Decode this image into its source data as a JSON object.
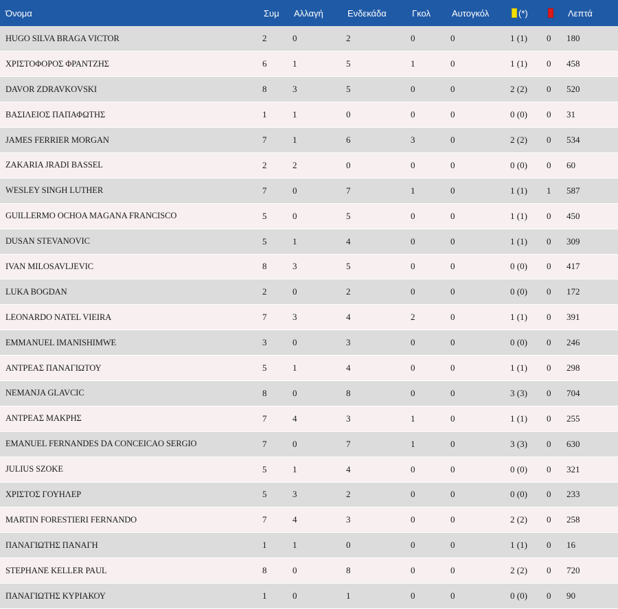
{
  "table": {
    "headers": {
      "name": "Όνομα",
      "apps": "Συμ",
      "sub": "Αλλαγή",
      "starts": "Ενδεκάδα",
      "goals": "Γκολ",
      "own_goals": "Αυτογκόλ",
      "yellow_suffix": "(*)",
      "minutes": "Λεπτά"
    },
    "colors": {
      "header_bg": "#1f5aa6",
      "yellow_card": "#f4e000",
      "red_card": "#e11b1b",
      "row_odd": "#dcdcdc",
      "row_even": "#f7eff0"
    },
    "rows": [
      {
        "name": "HUGO SILVA BRAGA VICTOR",
        "apps": "2",
        "sub": "0",
        "starts": "2",
        "goals": "0",
        "own": "0",
        "yellow": "1 (1)",
        "red": "0",
        "min": "180"
      },
      {
        "name": "ΧΡΙΣΤΟΦΟΡΟΣ ΦΡΑΝΤΖΗΣ",
        "apps": "6",
        "sub": "1",
        "starts": "5",
        "goals": "1",
        "own": "0",
        "yellow": "1 (1)",
        "red": "0",
        "min": "458"
      },
      {
        "name": "DAVOR ZDRAVKOVSKI",
        "apps": "8",
        "sub": "3",
        "starts": "5",
        "goals": "0",
        "own": "0",
        "yellow": "2 (2)",
        "red": "0",
        "min": "520"
      },
      {
        "name": "ΒΑΣΙΛΕΙΟΣ ΠΑΠΑΦΩΤΗΣ",
        "apps": "1",
        "sub": "1",
        "starts": "0",
        "goals": "0",
        "own": "0",
        "yellow": "0 (0)",
        "red": "0",
        "min": "31"
      },
      {
        "name": "JAMES FERRIER MORGAN",
        "apps": "7",
        "sub": "1",
        "starts": "6",
        "goals": "3",
        "own": "0",
        "yellow": "2 (2)",
        "red": "0",
        "min": "534"
      },
      {
        "name": "ZAKARIA JRADI BASSEL",
        "apps": "2",
        "sub": "2",
        "starts": "0",
        "goals": "0",
        "own": "0",
        "yellow": "0 (0)",
        "red": "0",
        "min": "60"
      },
      {
        "name": "WESLEY SINGH LUTHER",
        "apps": "7",
        "sub": "0",
        "starts": "7",
        "goals": "1",
        "own": "0",
        "yellow": "1 (1)",
        "red": "1",
        "min": "587"
      },
      {
        "name": "GUILLERMO OCHOA MAGANA FRANCISCO",
        "apps": "5",
        "sub": "0",
        "starts": "5",
        "goals": "0",
        "own": "0",
        "yellow": "1 (1)",
        "red": "0",
        "min": "450"
      },
      {
        "name": "DUSAN STEVANOVIC",
        "apps": "5",
        "sub": "1",
        "starts": "4",
        "goals": "0",
        "own": "0",
        "yellow": "1 (1)",
        "red": "0",
        "min": "309"
      },
      {
        "name": "IVAN MILOSAVLJEVIC",
        "apps": "8",
        "sub": "3",
        "starts": "5",
        "goals": "0",
        "own": "0",
        "yellow": "0 (0)",
        "red": "0",
        "min": "417"
      },
      {
        "name": "LUKA BOGDAN",
        "apps": "2",
        "sub": "0",
        "starts": "2",
        "goals": "0",
        "own": "0",
        "yellow": "0 (0)",
        "red": "0",
        "min": "172"
      },
      {
        "name": "LEONARDO NATEL VIEIRA",
        "apps": "7",
        "sub": "3",
        "starts": "4",
        "goals": "2",
        "own": "0",
        "yellow": "1 (1)",
        "red": "0",
        "min": "391"
      },
      {
        "name": "EMMANUEL IMANISHIMWE",
        "apps": "3",
        "sub": "0",
        "starts": "3",
        "goals": "0",
        "own": "0",
        "yellow": "0 (0)",
        "red": "0",
        "min": "246"
      },
      {
        "name": "ΑΝΤΡΕΑΣ ΠΑΝΑΓΙΩΤΟΥ",
        "apps": "5",
        "sub": "1",
        "starts": "4",
        "goals": "0",
        "own": "0",
        "yellow": "1 (1)",
        "red": "0",
        "min": "298"
      },
      {
        "name": "NEMANJA GLAVCIC",
        "apps": "8",
        "sub": "0",
        "starts": "8",
        "goals": "0",
        "own": "0",
        "yellow": "3 (3)",
        "red": "0",
        "min": "704"
      },
      {
        "name": "ΑΝΤΡΕΑΣ ΜΑΚΡΗΣ",
        "apps": "7",
        "sub": "4",
        "starts": "3",
        "goals": "1",
        "own": "0",
        "yellow": "1 (1)",
        "red": "0",
        "min": "255"
      },
      {
        "name": "EMANUEL FERNANDES DA CONCEICAO SERGIO",
        "apps": "7",
        "sub": "0",
        "starts": "7",
        "goals": "1",
        "own": "0",
        "yellow": "3 (3)",
        "red": "0",
        "min": "630"
      },
      {
        "name": "JULIUS SZOKE",
        "apps": "5",
        "sub": "1",
        "starts": "4",
        "goals": "0",
        "own": "0",
        "yellow": "0 (0)",
        "red": "0",
        "min": "321"
      },
      {
        "name": "ΧΡΙΣΤΟΣ ΓΟΥΗΛΕΡ",
        "apps": "5",
        "sub": "3",
        "starts": "2",
        "goals": "0",
        "own": "0",
        "yellow": "0 (0)",
        "red": "0",
        "min": "233"
      },
      {
        "name": "MARTIN FORESTIERI FERNANDO",
        "apps": "7",
        "sub": "4",
        "starts": "3",
        "goals": "0",
        "own": "0",
        "yellow": "2 (2)",
        "red": "0",
        "min": "258"
      },
      {
        "name": "ΠΑΝΑΓΙΩΤΗΣ ΠΑΝΑΓΗ",
        "apps": "1",
        "sub": "1",
        "starts": "0",
        "goals": "0",
        "own": "0",
        "yellow": "1 (1)",
        "red": "0",
        "min": "16"
      },
      {
        "name": "STEPHANE KELLER PAUL",
        "apps": "8",
        "sub": "0",
        "starts": "8",
        "goals": "0",
        "own": "0",
        "yellow": "2 (2)",
        "red": "0",
        "min": "720"
      },
      {
        "name": "ΠΑΝΑΓΙΩΤΗΣ ΚΥΡΙΑΚΟΥ",
        "apps": "1",
        "sub": "0",
        "starts": "1",
        "goals": "0",
        "own": "0",
        "yellow": "0 (0)",
        "red": "0",
        "min": "90"
      }
    ]
  }
}
